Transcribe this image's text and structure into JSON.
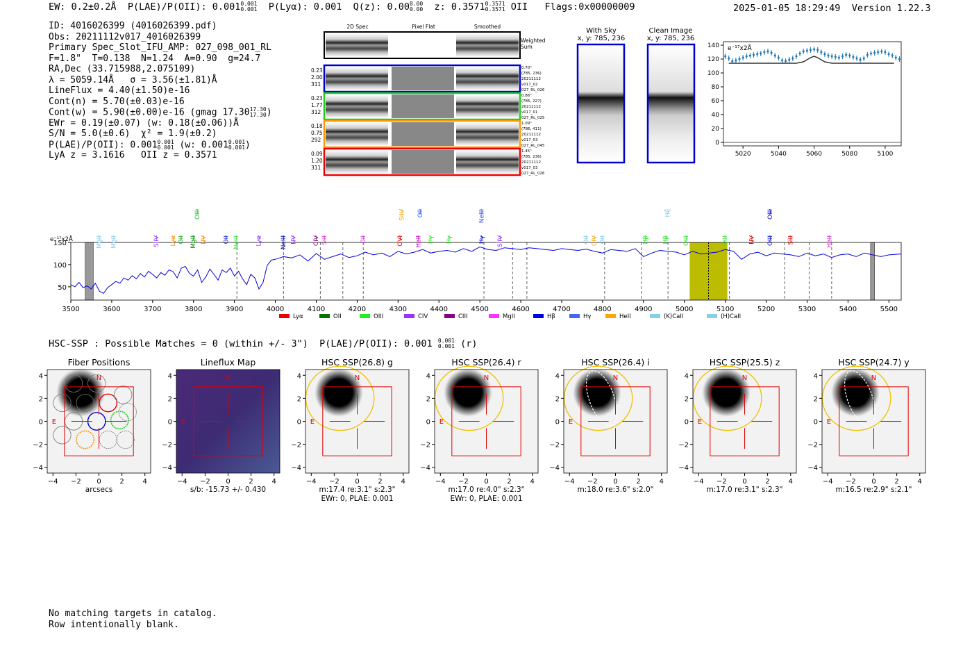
{
  "header": {
    "ew": "EW: 0.2±0.2Å",
    "plae_label": "P(LAE)/P(OII): 0.001",
    "plae_sup": "0.001",
    "plae_sub": "0.001",
    "plya": "P(Lyα): 0.001",
    "qz_label": "Q(z): 0.00",
    "qz_sup": "0.00",
    "qz_sub": "0.00",
    "z_label": "z: 0.3571",
    "z_sup": "0.3571",
    "z_sub": "0.3571",
    "z_line": "OII",
    "flags": "Flags:0x00000009",
    "datetime": "2025-01-05 18:29:49",
    "version": "Version 1.22.3"
  },
  "info": {
    "id": "ID: 4016026399 (4016026399.pdf)",
    "obs": "Obs: 20211112v017_4016026399",
    "primary": "Primary Spec_Slot_IFU_AMP: 027_098_001_RL",
    "fit": "F=1.8\"  T=0.138  N=1.24  A=0.90  g=24.7",
    "radec": "RA,Dec (33.715988,2.075109)",
    "lambda": "λ = 5059.14Å   σ = 3.56(±1.81)Å",
    "lineflux": "LineFlux = 4.40(±1.50)e-16",
    "contn": "Cont(n) = 5.70(±0.03)e-16",
    "contw": "Cont(w) = 5.90(±0.00)e-16 (gmag 17.30",
    "contw_sup": "17.30",
    "contw_sub": "17.30",
    "ewr": "EWr = 0.19(±0.07) (w: 0.18(±0.06))Å",
    "sn": "S/N = 5.0(±0.6)  χ² = 1.9(±0.2)",
    "plae": "P(LAE)/P(OII): 0.001",
    "plae_sup": "0.001",
    "plae_sub": "0.001",
    "plae_w": "(w: 0.001",
    "plae_w_sup": "0.001",
    "plae_w_sub": "0.001",
    "lya": "LyA z = 3.1616   OII z = 0.3571"
  },
  "stamps": {
    "col_2d": "2D Spec",
    "col_flat": "Pixel Flat",
    "col_smooth": "Smoothed",
    "weighted": [
      "Weighted",
      "Sum"
    ],
    "rows": [
      {
        "left": [
          "0.23",
          "2.00",
          "311"
        ],
        "right": [
          "0.70\"",
          "(785, 236)",
          "20211112",
          "v017_02",
          "027_RL_026"
        ],
        "color": "#0000cc"
      },
      {
        "left": [
          "0.23",
          "1.77",
          "312"
        ],
        "right": [
          "0.86\"",
          "(785, 227)",
          "20211112",
          "v017_01",
          "027_RL_025"
        ],
        "color": "#22cc22"
      },
      {
        "left": [
          "0.18",
          "0.75",
          "292"
        ],
        "right": [
          "1.09\"",
          "(786, 411)",
          "20211112",
          "v017_03",
          "027_RL_045"
        ],
        "color": "#ff9900"
      },
      {
        "left": [
          "0.09",
          "1.20",
          "311"
        ],
        "right": [
          "1.45\"",
          "(785, 236)",
          "20211112",
          "v017_03",
          "027_RL_026"
        ],
        "color": "#ee0000"
      }
    ],
    "with_sky": [
      "With Sky",
      "x, y: 785, 236"
    ],
    "clean": [
      "Clean Image",
      "x, y: 785, 236"
    ]
  },
  "hsc": {
    "line": "HSC-SSP : Possible Matches = 0 (within +/- 3\")  P(LAE)/P(OII): 0.001",
    "line_sup": "0.001",
    "line_sub": "0.001",
    "line_tail": "(r)"
  },
  "bottom": {
    "line1": "No matching targets in catalog.",
    "line2": "Row intentionally blank."
  },
  "chart_data": [
    {
      "type": "line",
      "title": "",
      "ylabel": "e⁻¹⁷x2Å",
      "x_ticks": [
        5020,
        5040,
        5060,
        5080,
        5100
      ],
      "y_ticks": [
        0,
        20,
        40,
        60,
        80,
        100,
        120,
        140
      ],
      "xlim": [
        5009,
        5109
      ],
      "ylim": [
        -5,
        145
      ],
      "series": [
        {
          "style": "data-errorbar",
          "color": "#1f77b4",
          "x": [
            5010,
            5012,
            5014,
            5016,
            5018,
            5020,
            5022,
            5024,
            5026,
            5028,
            5030,
            5032,
            5034,
            5036,
            5038,
            5040,
            5042,
            5044,
            5046,
            5048,
            5050,
            5052,
            5054,
            5056,
            5058,
            5060,
            5062,
            5064,
            5066,
            5068,
            5070,
            5072,
            5074,
            5076,
            5078,
            5080,
            5082,
            5084,
            5086,
            5088,
            5090,
            5092,
            5094,
            5096,
            5098,
            5100,
            5102,
            5104,
            5106,
            5108
          ],
          "y": [
            124,
            121,
            117,
            118,
            120,
            122,
            124,
            125,
            126,
            127,
            128,
            130,
            131,
            129,
            125,
            122,
            118,
            117,
            119,
            121,
            124,
            128,
            131,
            132,
            133,
            134,
            133,
            130,
            127,
            125,
            124,
            123,
            122,
            124,
            126,
            125,
            123,
            121,
            119,
            121,
            126,
            128,
            129,
            130,
            131,
            130,
            127,
            125,
            122,
            120
          ]
        },
        {
          "style": "model",
          "color": "#333333",
          "x": [
            5012,
            5020,
            5040,
            5050,
            5054,
            5058,
            5060,
            5062,
            5066,
            5070,
            5080,
            5090,
            5100,
            5105
          ],
          "y": [
            114,
            114,
            114,
            114,
            116,
            122,
            124,
            122,
            116,
            114,
            114,
            114,
            114,
            114
          ]
        }
      ]
    },
    {
      "type": "line",
      "title": "",
      "ylabel": "e⁻¹⁷x2Å",
      "x_ticks": [
        3500,
        3600,
        3700,
        3800,
        3900,
        4000,
        4100,
        4200,
        4300,
        4400,
        4500,
        4600,
        4700,
        4800,
        4900,
        5000,
        5100,
        5200,
        5300,
        5400,
        5500
      ],
      "y_ticks": [
        50,
        100,
        150
      ],
      "xlim": [
        3500,
        5530
      ],
      "ylim": [
        20,
        150
      ],
      "series": [
        {
          "name": "spectrum",
          "color": "#0000dd",
          "x": [
            3500,
            3510,
            3520,
            3530,
            3540,
            3550,
            3560,
            3570,
            3580,
            3590,
            3600,
            3610,
            3620,
            3630,
            3640,
            3650,
            3660,
            3670,
            3680,
            3690,
            3700,
            3710,
            3720,
            3730,
            3740,
            3750,
            3760,
            3770,
            3780,
            3790,
            3800,
            3810,
            3820,
            3830,
            3840,
            3850,
            3860,
            3870,
            3880,
            3890,
            3900,
            3910,
            3920,
            3930,
            3940,
            3950,
            3960,
            3970,
            3980,
            3990,
            4000,
            4020,
            4040,
            4060,
            4080,
            4100,
            4120,
            4140,
            4160,
            4180,
            4200,
            4220,
            4240,
            4260,
            4280,
            4300,
            4320,
            4340,
            4360,
            4380,
            4400,
            4420,
            4440,
            4460,
            4480,
            4500,
            4520,
            4540,
            4560,
            4580,
            4600,
            4620,
            4640,
            4660,
            4680,
            4700,
            4720,
            4740,
            4760,
            4780,
            4800,
            4820,
            4840,
            4860,
            4880,
            4900,
            4920,
            4940,
            4960,
            4980,
            5000,
            5020,
            5040,
            5060,
            5080,
            5100,
            5120,
            5140,
            5160,
            5180,
            5200,
            5220,
            5240,
            5260,
            5280,
            5300,
            5320,
            5340,
            5360,
            5380,
            5400,
            5420,
            5440,
            5460,
            5480,
            5500,
            5530
          ],
          "y": [
            55,
            50,
            60,
            48,
            52,
            45,
            58,
            40,
            35,
            48,
            55,
            62,
            58,
            70,
            65,
            75,
            68,
            80,
            72,
            85,
            78,
            70,
            82,
            76,
            88,
            84,
            70,
            92,
            96,
            80,
            74,
            88,
            60,
            72,
            90,
            78,
            65,
            88,
            82,
            92,
            74,
            85,
            68,
            55,
            78,
            70,
            45,
            60,
            98,
            110,
            112,
            118,
            115,
            122,
            108,
            125,
            112,
            118,
            124,
            116,
            120,
            128,
            122,
            126,
            118,
            130,
            124,
            128,
            134,
            126,
            130,
            132,
            128,
            136,
            130,
            140,
            134,
            132,
            138,
            136,
            134,
            138,
            136,
            134,
            132,
            136,
            134,
            132,
            135,
            130,
            126,
            134,
            132,
            130,
            136,
            118,
            126,
            132,
            130,
            128,
            122,
            130,
            124,
            126,
            128,
            134,
            130,
            112,
            124,
            128,
            120,
            126,
            124,
            122,
            118,
            126,
            120,
            124,
            116,
            122,
            124,
            118,
            126,
            122,
            118,
            122,
            124
          ]
        }
      ],
      "shaded_x": [
        5013,
        5105
      ],
      "line_x": [
        5059
      ],
      "grey_bands": [
        [
          3535,
          3555
        ],
        [
          5455,
          5465
        ]
      ],
      "dashed_x": [
        3906,
        4020,
        4110,
        4165,
        4215,
        4510,
        4580,
        4615,
        4805,
        4895,
        4960,
        5110,
        5245,
        5305,
        5360
      ],
      "labels_low": [
        {
          "t": "MgII",
          "x": 3570,
          "c": "#87ceeb"
        },
        {
          "t": "MgII",
          "x": 3605,
          "c": "#87ceeb"
        },
        {
          "t": "SiIV",
          "x": 3710,
          "c": "#9933ff"
        },
        {
          "t": "Lyα",
          "x": 3750,
          "c": "#ff8c00"
        },
        {
          "t": "OII",
          "x": 3770,
          "c": "#22aa22"
        },
        {
          "t": "MgII",
          "x": 3800,
          "c": "#008800"
        },
        {
          "t": "NV",
          "x": 3825,
          "c": "#ff8c00"
        },
        {
          "t": "OII",
          "x": 3880,
          "c": "#2222cc"
        },
        {
          "t": "NeIII",
          "x": 3905,
          "c": "#33dd33"
        },
        {
          "t": "Lyα",
          "x": 3960,
          "c": "#9933ff"
        },
        {
          "t": "NeIII",
          "x": 4020,
          "c": "#0000aa"
        },
        {
          "t": "NV",
          "x": 4045,
          "c": "#9933ff"
        },
        {
          "t": "CIV",
          "x": 4100,
          "c": "#880088"
        },
        {
          "t": "SiII",
          "x": 4120,
          "c": "#cc33cc"
        },
        {
          "t": "CII",
          "x": 4215,
          "c": "#cc33cc"
        },
        {
          "t": "OVI",
          "x": 4305,
          "c": "#dd0000"
        },
        {
          "t": "HeII",
          "x": 4350,
          "c": "#cc00cc"
        },
        {
          "t": "Hγ",
          "x": 4380,
          "c": "#33dd33"
        },
        {
          "t": "Hγ",
          "x": 4425,
          "c": "#33dd33"
        },
        {
          "t": "Hγ",
          "x": 4505,
          "c": "#0000cc"
        },
        {
          "t": "SiIV",
          "x": 4550,
          "c": "#9933ff"
        },
        {
          "t": "OII",
          "x": 4760,
          "c": "#87ceeb"
        },
        {
          "t": "CIV",
          "x": 4780,
          "c": "#ffaa00"
        },
        {
          "t": "OII",
          "x": 4800,
          "c": "#87ceeb"
        },
        {
          "t": "Hβ",
          "x": 4905,
          "c": "#33dd33"
        },
        {
          "t": "Hβ",
          "x": 4955,
          "c": "#33dd33"
        },
        {
          "t": "OIII",
          "x": 5005,
          "c": "#33dd33"
        },
        {
          "t": "OIII",
          "x": 5100,
          "c": "#33dd33"
        },
        {
          "t": "NV",
          "x": 5165,
          "c": "#dd0000"
        },
        {
          "t": "OIII",
          "x": 5210,
          "c": "#0000cc"
        },
        {
          "t": "SiII",
          "x": 5260,
          "c": "#dd0000"
        },
        {
          "t": "HeII",
          "x": 5355,
          "c": "#cc33cc"
        }
      ],
      "labels_high": [
        {
          "t": "OIII",
          "x": 3810,
          "c": "#22cc22"
        },
        {
          "t": "SiIV",
          "x": 4310,
          "c": "#ffaa00"
        },
        {
          "t": "OII",
          "x": 4355,
          "c": "#3355ee"
        },
        {
          "t": "NeIII",
          "x": 4505,
          "c": "#3355ee"
        },
        {
          "t": "Hζ",
          "x": 4960,
          "c": "#87ceeb"
        },
        {
          "t": "OIII",
          "x": 5210,
          "c": "#0000cc"
        }
      ],
      "legend": [
        {
          "name": "Lyα",
          "color": "#ee0000"
        },
        {
          "name": "OII",
          "color": "#007700"
        },
        {
          "name": "OIII",
          "color": "#22ee22"
        },
        {
          "name": "CIV",
          "color": "#9933ff"
        },
        {
          "name": "CIII",
          "color": "#880088"
        },
        {
          "name": "MgII",
          "color": "#ff33ff"
        },
        {
          "name": "Hβ",
          "color": "#0000ee"
        },
        {
          "name": "Hγ",
          "color": "#4466ee"
        },
        {
          "name": "HeII",
          "color": "#ffa500"
        },
        {
          "name": "(K)CaII",
          "color": "#87ceeb"
        },
        {
          "name": "(H)CaII",
          "color": "#87ceeb"
        }
      ]
    },
    {
      "type": "heatmap",
      "panels": [
        {
          "title": "Fiber Positions",
          "xlabel": "arcsecs",
          "kind": "fibers"
        },
        {
          "title": "Lineflux Map",
          "xlabel": "s/b: -15.73 +/- 0.430",
          "kind": "lineflux"
        },
        {
          "title": "HSC SSP(26.8) g",
          "xlabel": "m:17.4  re:3.1\"  s:2.3\"",
          "xlabel2": "EWr: 0, PLAE: 0.001",
          "kind": "hsc",
          "ellipse": "plain"
        },
        {
          "title": "HSC SSP(26.4) r",
          "xlabel": "m:17.0  re:4.0\"  s:2.3\"",
          "xlabel2": "EWr: 0, PLAE: 0.001",
          "kind": "hsc",
          "ellipse": "plain"
        },
        {
          "title": "HSC SSP(26.4) i",
          "xlabel": "m:18.0  re:3.6\"  s:2.0\"",
          "kind": "hsc",
          "ellipse": "dashed"
        },
        {
          "title": "HSC SSP(25.5) z",
          "xlabel": "m:17.0  re:3.1\"  s:2.3\"",
          "kind": "hsc",
          "ellipse": "plain"
        },
        {
          "title": "HSC SSP(24.7) y",
          "xlabel": "m:16.5  re:2.9\"  s:2.1\"",
          "kind": "hsc",
          "ellipse": "dashed"
        }
      ],
      "ticks": [
        -4,
        -2,
        0,
        2,
        4
      ],
      "compass_n": "N",
      "compass_e": "E"
    }
  ]
}
